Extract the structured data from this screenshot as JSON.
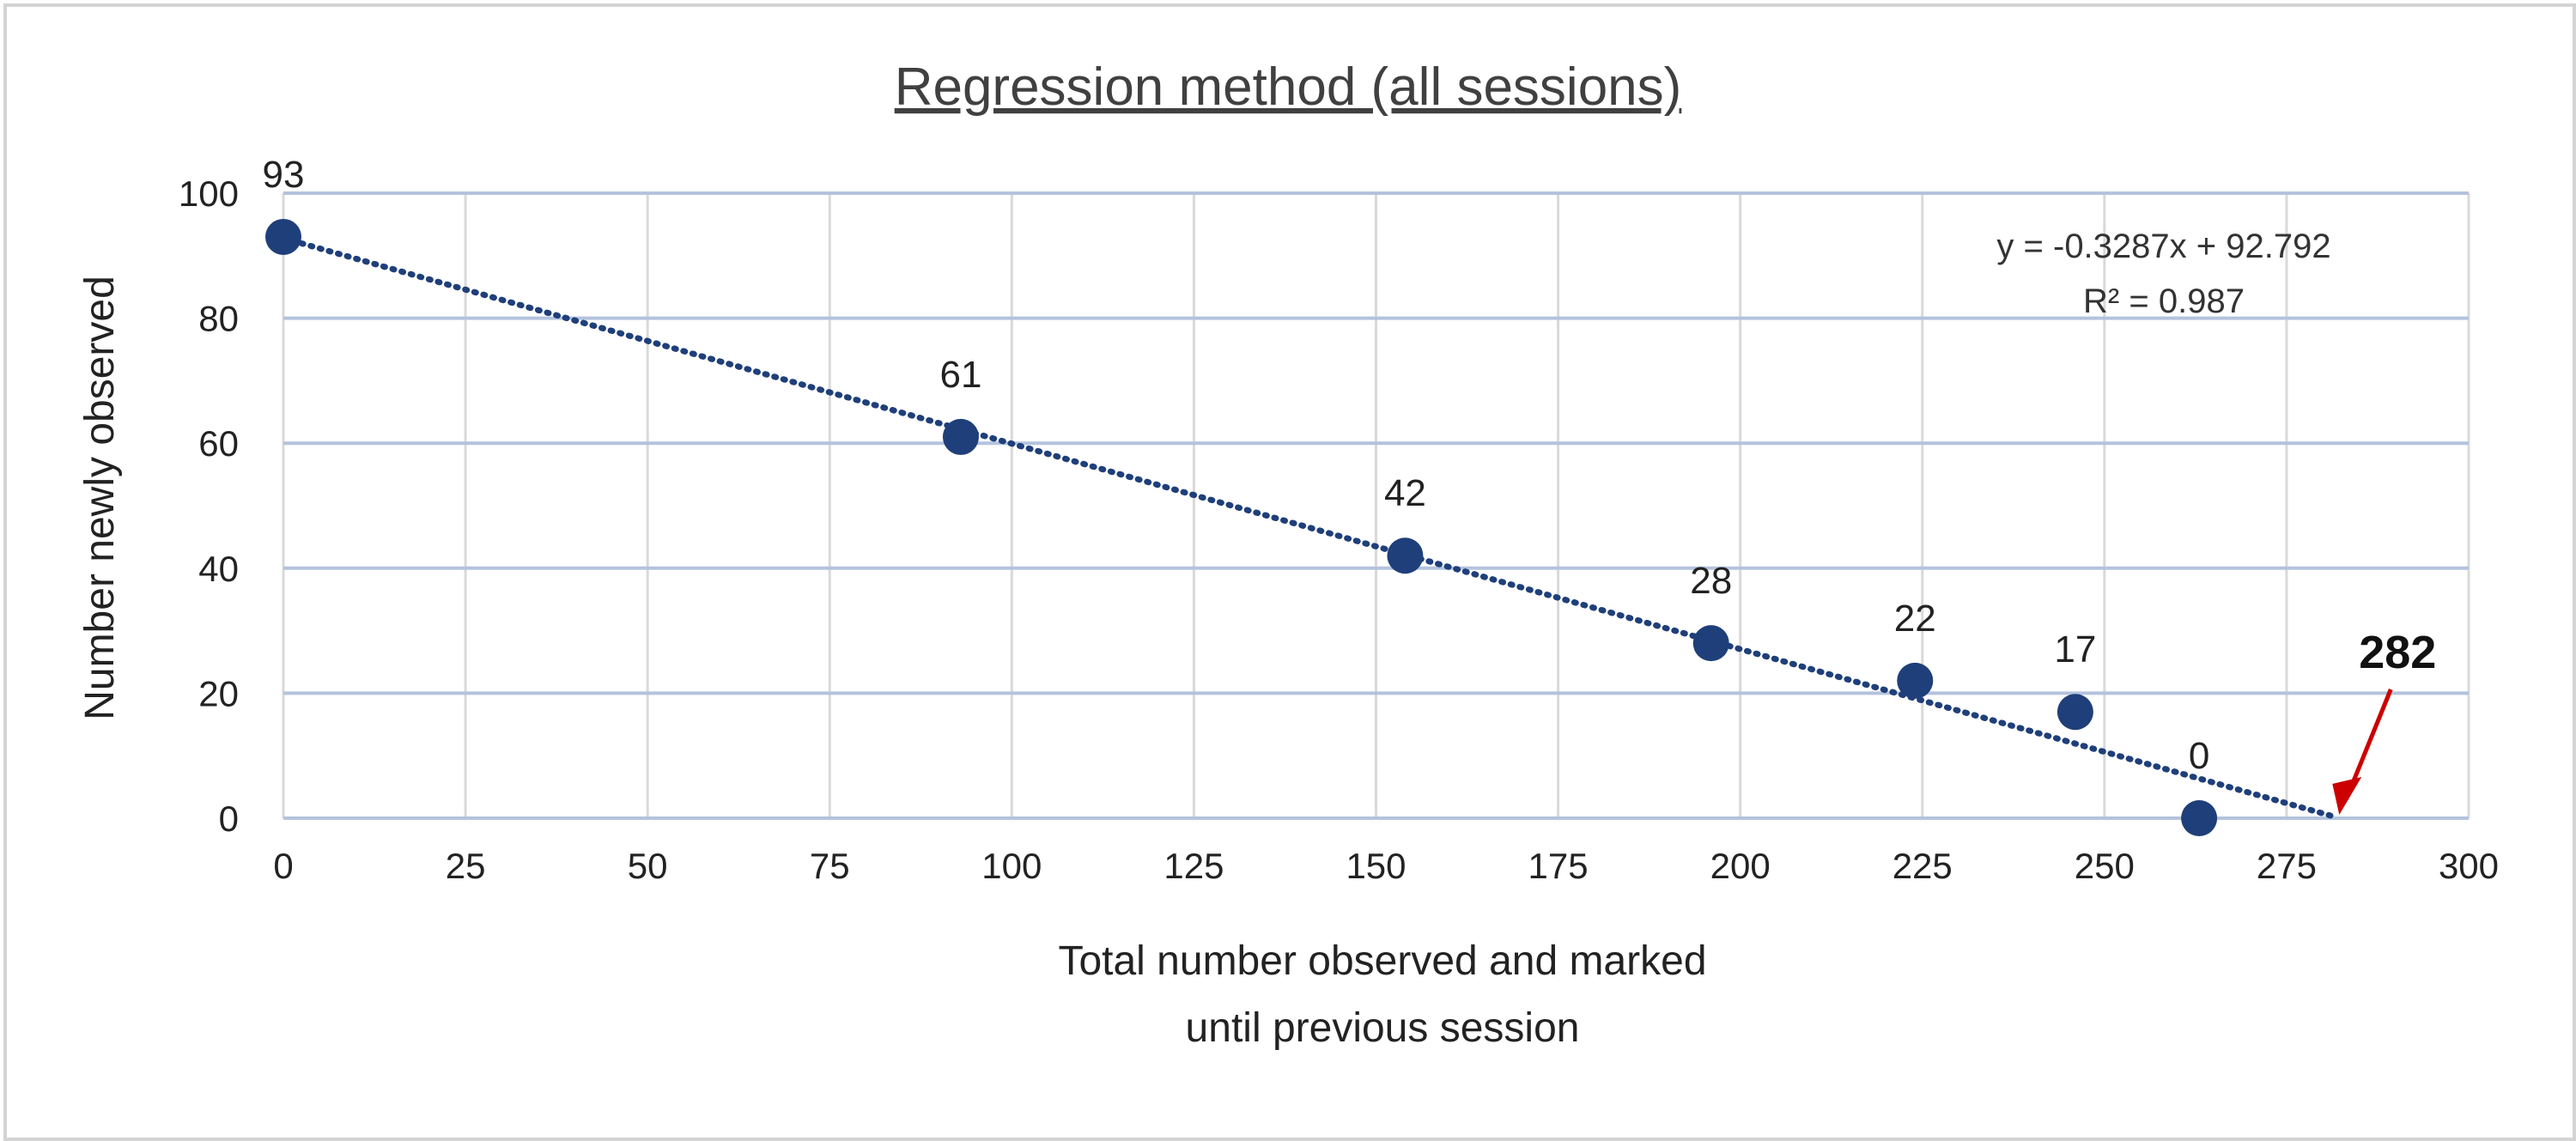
{
  "chart_data": {
    "type": "scatter",
    "title": "Regression method (all sessions)",
    "xlabel_lines": [
      "Total number observed and marked",
      "until previous session"
    ],
    "ylabel": "Number newly observed",
    "xlim": [
      0,
      300
    ],
    "ylim": [
      0,
      100
    ],
    "x_ticks": [
      0,
      25,
      50,
      75,
      100,
      125,
      150,
      175,
      200,
      225,
      250,
      275,
      300
    ],
    "y_ticks": [
      0,
      20,
      40,
      60,
      80,
      100
    ],
    "grid": true,
    "series": [
      {
        "points": [
          {
            "x": 0,
            "y": 93,
            "label": "93"
          },
          {
            "x": 93,
            "y": 61,
            "label": "61"
          },
          {
            "x": 154,
            "y": 42,
            "label": "42"
          },
          {
            "x": 196,
            "y": 28,
            "label": "28"
          },
          {
            "x": 224,
            "y": 22,
            "label": "22"
          },
          {
            "x": 246,
            "y": 17,
            "label": "17"
          },
          {
            "x": 263,
            "y": 0,
            "label": "0"
          }
        ]
      }
    ],
    "trendline": {
      "type": "linear",
      "slope": -0.3287,
      "intercept": 92.792,
      "x_range": [
        0,
        282
      ],
      "equation": "y = -0.3287x + 92.792",
      "r_squared": "R² = 0.987"
    },
    "annotation": {
      "text": "282",
      "x": 282,
      "y": 0
    },
    "colors": {
      "point": "#1f3f7a",
      "trendline": "#1f3f7a",
      "grid": "#b4c3dd",
      "arrow": "#cc0000"
    }
  }
}
